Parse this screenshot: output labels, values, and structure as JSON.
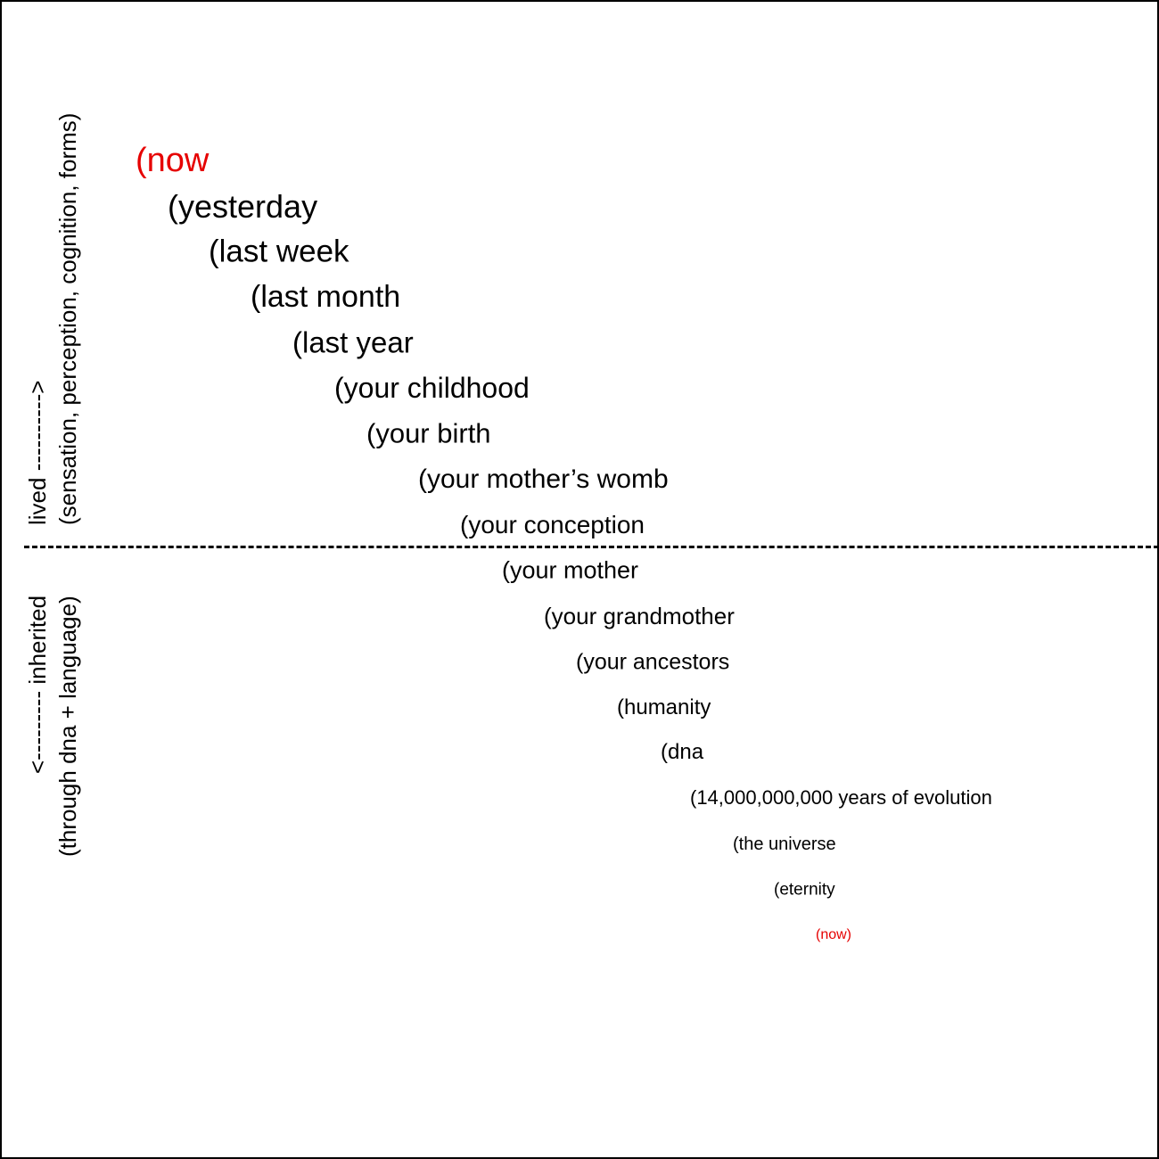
{
  "colors": {
    "accent": "#e60000",
    "text": "#000000",
    "background": "#ffffff"
  },
  "side_labels": {
    "lived": "lived ---------->",
    "lived_sub": "(sensation, perception, cognition, forms)",
    "inherited": "<---------  inherited",
    "inherited_sub": "(through dna + language)"
  },
  "lived_steps": [
    "(now",
    "(yesterday",
    "(last week",
    "(last month",
    "(last year",
    "(your childhood",
    "(your birth",
    "(your mother’s womb",
    "(your conception"
  ],
  "inherited_steps": [
    "(your mother",
    "(your grandmother",
    "(your ancestors",
    "(humanity",
    "(dna",
    "(14,000,000,000 years of evolution",
    "(the universe",
    "(eternity",
    "(now)"
  ]
}
